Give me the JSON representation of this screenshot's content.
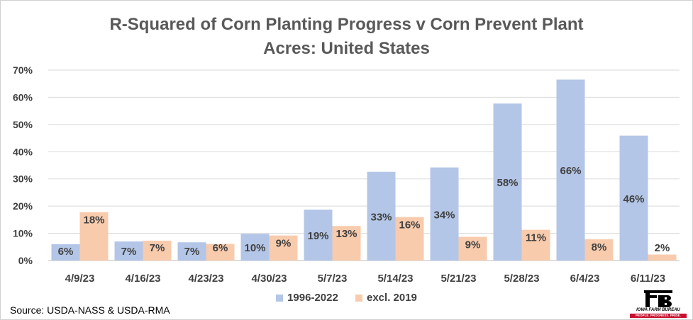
{
  "chart_data": {
    "type": "bar",
    "title": "R-Squared of Corn Planting Progress v Corn Prevent Plant Acres: United States",
    "title_lines": [
      "R-Squared of Corn Planting Progress v Corn Prevent Plant",
      "Acres: United States"
    ],
    "categories": [
      "4/9/23",
      "4/16/23",
      "4/23/23",
      "4/30/23",
      "5/7/23",
      "5/14/23",
      "5/21/23",
      "5/28/23",
      "6/4/23",
      "6/11/23"
    ],
    "series": [
      {
        "name": "1996-2022",
        "color": "#b4c6e7",
        "values": [
          0.06,
          0.07,
          0.067,
          0.098,
          0.187,
          0.326,
          0.342,
          0.577,
          0.665,
          0.459
        ],
        "labels": [
          "6%",
          "7%",
          "7%",
          "10%",
          "19%",
          "33%",
          "34%",
          "58%",
          "66%",
          "46%"
        ]
      },
      {
        "name": "excl. 2019",
        "color": "#f8cbad",
        "values": [
          0.178,
          0.073,
          0.061,
          0.092,
          0.127,
          0.16,
          0.087,
          0.113,
          0.078,
          0.022
        ],
        "labels": [
          "18%",
          "7%",
          "6%",
          "9%",
          "13%",
          "16%",
          "9%",
          "11%",
          "8%",
          "2%"
        ]
      }
    ],
    "y_ticks": [
      {
        "value": 0,
        "label": "0%"
      },
      {
        "value": 0.1,
        "label": "10%"
      },
      {
        "value": 0.2,
        "label": "20%"
      },
      {
        "value": 0.3,
        "label": "30%"
      },
      {
        "value": 0.4,
        "label": "40%"
      },
      {
        "value": 0.5,
        "label": "50%"
      },
      {
        "value": 0.6,
        "label": "60%"
      },
      {
        "value": 0.7,
        "label": "70%"
      }
    ],
    "ylim": [
      0,
      0.7
    ],
    "xlabel": "",
    "ylabel": "",
    "grid": true,
    "legend_position": "bottom"
  },
  "source": "Source: USDA-NASS & USDA-RMA",
  "logo": {
    "name": "IOWA FARM BUREAU",
    "tagline": "PEOPLE. PROGRESS. PRIDE.",
    "color": "#c8102e"
  }
}
